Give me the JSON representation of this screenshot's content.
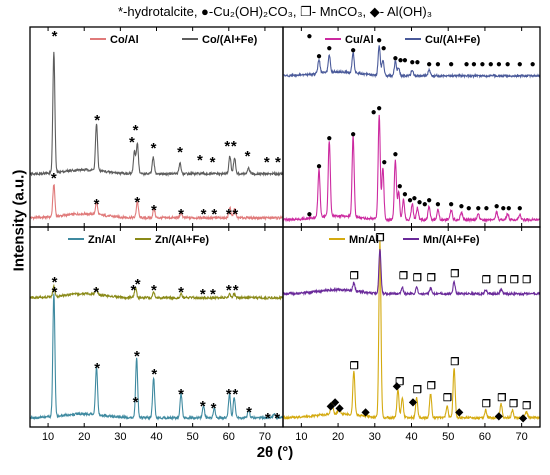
{
  "figure": {
    "top_legend": "*-hydrotalcite, ●-Cu₂(OH)₂CO₃, ❐- MnCO₃, ◆- Al(OH)₃",
    "ylabel": "Intensity (a.u.)",
    "xlabel": "2θ (°)"
  },
  "chart_data": [
    {
      "type": "line",
      "panel": "top-left",
      "xlim": [
        5,
        75
      ],
      "xticks": [],
      "series": [
        {
          "name": "Co/Al",
          "color": "#e07a7a",
          "offset": 0.04,
          "scale": 0.9,
          "peaks": [
            [
              11.6,
              0.18
            ],
            [
              23.4,
              0.07
            ],
            [
              34.7,
              0.09
            ],
            [
              39.3,
              0.05
            ],
            [
              46.8,
              0.03
            ],
            [
              60.3,
              0.06
            ],
            [
              61.6,
              0.05
            ]
          ]
        },
        {
          "name": "Co/(Al+Fe)",
          "color": "#5d5d5d",
          "offset": 0.26,
          "scale": 0.9,
          "peaks": [
            [
              11.6,
              0.67
            ],
            [
              23.4,
              0.26
            ],
            [
              33.9,
              0.12
            ],
            [
              34.7,
              0.17
            ],
            [
              39.1,
              0.09
            ],
            [
              46.5,
              0.06
            ],
            [
              60.3,
              0.1
            ],
            [
              61.6,
              0.09
            ],
            [
              65.5,
              0.03
            ]
          ]
        }
      ],
      "markers": [
        {
          "symbol": "*",
          "x": 11.6,
          "y": 0.26
        },
        {
          "symbol": "*",
          "x": 23.4,
          "y": 0.13
        },
        {
          "symbol": "*",
          "x": 34.7,
          "y": 0.14
        },
        {
          "symbol": "*",
          "x": 39.3,
          "y": 0.1
        },
        {
          "symbol": "*",
          "x": 46.8,
          "y": 0.08
        },
        {
          "symbol": "*",
          "x": 53,
          "y": 0.08
        },
        {
          "symbol": "*",
          "x": 56,
          "y": 0.08
        },
        {
          "symbol": "*",
          "x": 60,
          "y": 0.08
        },
        {
          "symbol": "*",
          "x": 61.8,
          "y": 0.08
        },
        {
          "symbol": "*",
          "x": 11.8,
          "y": 0.97
        },
        {
          "symbol": "*",
          "x": 23.6,
          "y": 0.55
        },
        {
          "symbol": "*",
          "x": 33.2,
          "y": 0.44
        },
        {
          "symbol": "*",
          "x": 34.2,
          "y": 0.5
        },
        {
          "symbol": "*",
          "x": 39.2,
          "y": 0.41
        },
        {
          "symbol": "*",
          "x": 46.5,
          "y": 0.39
        },
        {
          "symbol": "*",
          "x": 52,
          "y": 0.35
        },
        {
          "symbol": "*",
          "x": 55.5,
          "y": 0.34
        },
        {
          "symbol": "*",
          "x": 59.6,
          "y": 0.42
        },
        {
          "symbol": "*",
          "x": 61.4,
          "y": 0.42
        },
        {
          "symbol": "*",
          "x": 65.2,
          "y": 0.37
        },
        {
          "symbol": "*",
          "x": 70.5,
          "y": 0.34
        },
        {
          "symbol": "*",
          "x": 73.6,
          "y": 0.34
        }
      ]
    },
    {
      "type": "line",
      "panel": "top-right",
      "xlim": [
        5,
        75
      ],
      "xticks": [],
      "series": [
        {
          "name": "Cu/Al",
          "color": "#cc2aa0",
          "offset": 0.03,
          "scale": 1.0,
          "peaks": [
            [
              14.8,
              0.24
            ],
            [
              17.6,
              0.38
            ],
            [
              24.1,
              0.4
            ],
            [
              31.2,
              0.52
            ],
            [
              32.2,
              0.26
            ],
            [
              35.6,
              0.3
            ],
            [
              36.5,
              0.14
            ],
            [
              37.8,
              0.1
            ],
            [
              40.2,
              0.08
            ],
            [
              41.6,
              0.06
            ],
            [
              44.8,
              0.07
            ],
            [
              47.2,
              0.05
            ],
            [
              50.8,
              0.05
            ],
            [
              53.6,
              0.04
            ],
            [
              58.2,
              0.03
            ],
            [
              63.2,
              0.04
            ],
            [
              66.2,
              0.03
            ],
            [
              69.5,
              0.03
            ]
          ]
        },
        {
          "name": "Cu/(Al+Fe)",
          "color": "#4a5a9a",
          "offset": 0.75,
          "scale": 1.0,
          "peaks": [
            [
              14.8,
              0.07
            ],
            [
              17.6,
              0.09
            ],
            [
              24.1,
              0.1
            ],
            [
              31.2,
              0.15
            ],
            [
              32.2,
              0.08
            ],
            [
              35.6,
              0.07
            ],
            [
              36.5,
              0.04
            ],
            [
              40.2,
              0.03
            ],
            [
              44.8,
              0.03
            ]
          ]
        }
      ],
      "markers": [
        {
          "symbol": "●",
          "x": 12.2,
          "y": 0.96
        },
        {
          "symbol": "●",
          "x": 14.8,
          "y": 0.86
        },
        {
          "symbol": "●",
          "x": 17.6,
          "y": 0.9
        },
        {
          "symbol": "●",
          "x": 24.1,
          "y": 0.89
        },
        {
          "symbol": "●",
          "x": 31.2,
          "y": 0.94
        },
        {
          "symbol": "●",
          "x": 32.4,
          "y": 0.9
        },
        {
          "symbol": "●",
          "x": 35.6,
          "y": 0.85
        },
        {
          "symbol": "●",
          "x": 37,
          "y": 0.84
        },
        {
          "symbol": "●",
          "x": 38.2,
          "y": 0.84
        },
        {
          "symbol": "●",
          "x": 40.2,
          "y": 0.83
        },
        {
          "symbol": "●",
          "x": 41.6,
          "y": 0.83
        },
        {
          "symbol": "●",
          "x": 44.8,
          "y": 0.82
        },
        {
          "symbol": "●",
          "x": 47.2,
          "y": 0.82
        },
        {
          "symbol": "●",
          "x": 50.8,
          "y": 0.82
        },
        {
          "symbol": "●",
          "x": 55,
          "y": 0.82
        },
        {
          "symbol": "●",
          "x": 57,
          "y": 0.82
        },
        {
          "symbol": "●",
          "x": 59.3,
          "y": 0.82
        },
        {
          "symbol": "●",
          "x": 61.6,
          "y": 0.82
        },
        {
          "symbol": "●",
          "x": 63.8,
          "y": 0.82
        },
        {
          "symbol": "●",
          "x": 66.2,
          "y": 0.82
        },
        {
          "symbol": "●",
          "x": 69.5,
          "y": 0.82
        },
        {
          "symbol": "●",
          "x": 73,
          "y": 0.82
        },
        {
          "symbol": "●",
          "x": 12.2,
          "y": 0.07
        },
        {
          "symbol": "●",
          "x": 14.8,
          "y": 0.31
        },
        {
          "symbol": "●",
          "x": 17.6,
          "y": 0.45
        },
        {
          "symbol": "●",
          "x": 24.1,
          "y": 0.47
        },
        {
          "symbol": "●",
          "x": 29.7,
          "y": 0.58
        },
        {
          "symbol": "●",
          "x": 31.2,
          "y": 0.6
        },
        {
          "symbol": "●",
          "x": 32.6,
          "y": 0.33
        },
        {
          "symbol": "●",
          "x": 35.6,
          "y": 0.37
        },
        {
          "symbol": "●",
          "x": 36.8,
          "y": 0.21
        },
        {
          "symbol": "●",
          "x": 38.2,
          "y": 0.17
        },
        {
          "symbol": "●",
          "x": 39.6,
          "y": 0.14
        },
        {
          "symbol": "●",
          "x": 40.8,
          "y": 0.15
        },
        {
          "symbol": "●",
          "x": 42.2,
          "y": 0.13
        },
        {
          "symbol": "●",
          "x": 43.6,
          "y": 0.12
        },
        {
          "symbol": "●",
          "x": 44.8,
          "y": 0.14
        },
        {
          "symbol": "●",
          "x": 47.2,
          "y": 0.12
        },
        {
          "symbol": "●",
          "x": 50.8,
          "y": 0.12
        },
        {
          "symbol": "●",
          "x": 53.6,
          "y": 0.11
        },
        {
          "symbol": "●",
          "x": 55.6,
          "y": 0.1
        },
        {
          "symbol": "●",
          "x": 58.2,
          "y": 0.1
        },
        {
          "symbol": "●",
          "x": 60.4,
          "y": 0.1
        },
        {
          "symbol": "●",
          "x": 63.2,
          "y": 0.11
        },
        {
          "symbol": "●",
          "x": 65,
          "y": 0.1
        },
        {
          "symbol": "●",
          "x": 66.5,
          "y": 0.1
        },
        {
          "symbol": "●",
          "x": 69.5,
          "y": 0.1
        }
      ]
    },
    {
      "type": "line",
      "panel": "bottom-left",
      "xlim": [
        5,
        75
      ],
      "xticks": [
        10,
        20,
        30,
        40,
        50,
        60,
        70
      ],
      "series": [
        {
          "name": "Zn/Al",
          "color": "#3f8aa0",
          "offset": 0.04,
          "scale": 1.0,
          "peaks": [
            [
              11.6,
              0.62
            ],
            [
              23.4,
              0.24
            ],
            [
              34.5,
              0.3
            ],
            [
              39.2,
              0.2
            ],
            [
              46.8,
              0.12
            ],
            [
              53,
              0.06
            ],
            [
              56,
              0.05
            ],
            [
              60.2,
              0.12
            ],
            [
              61.5,
              0.1
            ],
            [
              65.5,
              0.04
            ],
            [
              72.5,
              0.02
            ]
          ]
        },
        {
          "name": "Zn/(Al+Fe)",
          "color": "#8a8a18",
          "offset": 0.64,
          "scale": 1.0,
          "peaks": [
            [
              11.6,
              0.05
            ],
            [
              23.4,
              0.03
            ],
            [
              34.2,
              0.05
            ],
            [
              39.2,
              0.03
            ],
            [
              46.8,
              0.02
            ],
            [
              60.2,
              0.02
            ],
            [
              61.5,
              0.02
            ]
          ]
        }
      ],
      "markers": [
        {
          "symbol": "*",
          "x": 11.8,
          "y": 0.74
        },
        {
          "symbol": "*",
          "x": 23.3,
          "y": 0.69
        },
        {
          "symbol": "*",
          "x": 33.6,
          "y": 0.7
        },
        {
          "symbol": "*",
          "x": 34.8,
          "y": 0.73
        },
        {
          "symbol": "*",
          "x": 39.3,
          "y": 0.7
        },
        {
          "symbol": "*",
          "x": 46.8,
          "y": 0.69
        },
        {
          "symbol": "*",
          "x": 52.8,
          "y": 0.68
        },
        {
          "symbol": "*",
          "x": 55.6,
          "y": 0.68
        },
        {
          "symbol": "*",
          "x": 60,
          "y": 0.7
        },
        {
          "symbol": "*",
          "x": 61.9,
          "y": 0.7
        },
        {
          "symbol": "*",
          "x": 11.8,
          "y": 0.69
        },
        {
          "symbol": "*",
          "x": 23.6,
          "y": 0.31
        },
        {
          "symbol": "*",
          "x": 34.6,
          "y": 0.37
        },
        {
          "symbol": "*",
          "x": 34.2,
          "y": 0.14
        },
        {
          "symbol": "*",
          "x": 39.4,
          "y": 0.28
        },
        {
          "symbol": "*",
          "x": 46.8,
          "y": 0.18
        },
        {
          "symbol": "*",
          "x": 52.8,
          "y": 0.12
        },
        {
          "symbol": "*",
          "x": 55.8,
          "y": 0.11
        },
        {
          "symbol": "*",
          "x": 60,
          "y": 0.18
        },
        {
          "symbol": "*",
          "x": 61.8,
          "y": 0.18
        },
        {
          "symbol": "*",
          "x": 65.6,
          "y": 0.09
        },
        {
          "symbol": "*",
          "x": 70.8,
          "y": 0.06
        },
        {
          "symbol": "*",
          "x": 73.4,
          "y": 0.06
        }
      ]
    },
    {
      "type": "line",
      "panel": "bottom-right",
      "xlim": [
        5,
        75
      ],
      "xticks": [
        10,
        20,
        30,
        40,
        50,
        60,
        70
      ],
      "series": [
        {
          "name": "Mn/Al",
          "color": "#d4aa10",
          "offset": 0.04,
          "scale": 1.0,
          "peaks": [
            [
              18.3,
              0.06
            ],
            [
              20.3,
              0.04
            ],
            [
              24.3,
              0.22
            ],
            [
              31.4,
              0.88
            ],
            [
              36.3,
              0.14
            ],
            [
              37.5,
              0.1
            ],
            [
              41.4,
              0.1
            ],
            [
              45.2,
              0.12
            ],
            [
              49.7,
              0.06
            ],
            [
              51.6,
              0.25
            ],
            [
              60.2,
              0.04
            ],
            [
              64.4,
              0.07
            ],
            [
              67.5,
              0.04
            ],
            [
              71.3,
              0.03
            ]
          ]
        },
        {
          "name": "Mn/(Al+Fe)",
          "color": "#6a2a9a",
          "offset": 0.66,
          "scale": 1.0,
          "peaks": [
            [
              24.3,
              0.04
            ],
            [
              31.4,
              0.22
            ],
            [
              37.5,
              0.03
            ],
            [
              41.4,
              0.03
            ],
            [
              45.2,
              0.03
            ],
            [
              51.6,
              0.06
            ],
            [
              60.2,
              0.02
            ],
            [
              64.4,
              0.02
            ]
          ]
        }
      ],
      "markers": [
        {
          "symbol": "❐",
          "x": 24.4,
          "y": 0.76
        },
        {
          "symbol": "❐",
          "x": 31.4,
          "y": 0.95
        },
        {
          "symbol": "❐",
          "x": 37.8,
          "y": 0.76
        },
        {
          "symbol": "❐",
          "x": 41.6,
          "y": 0.75
        },
        {
          "symbol": "❐",
          "x": 45.4,
          "y": 0.75
        },
        {
          "symbol": "❐",
          "x": 51.8,
          "y": 0.77
        },
        {
          "symbol": "❐",
          "x": 60.4,
          "y": 0.74
        },
        {
          "symbol": "❐",
          "x": 64.6,
          "y": 0.74
        },
        {
          "symbol": "❐",
          "x": 68,
          "y": 0.74
        },
        {
          "symbol": "❐",
          "x": 71.4,
          "y": 0.74
        },
        {
          "symbol": "❐",
          "x": 24.4,
          "y": 0.31
        },
        {
          "symbol": "❐",
          "x": 36.8,
          "y": 0.23
        },
        {
          "symbol": "❐",
          "x": 41.6,
          "y": 0.19
        },
        {
          "symbol": "❐",
          "x": 45.4,
          "y": 0.21
        },
        {
          "symbol": "❐",
          "x": 49.8,
          "y": 0.15
        },
        {
          "symbol": "❐",
          "x": 51.8,
          "y": 0.33
        },
        {
          "symbol": "❐",
          "x": 60.4,
          "y": 0.12
        },
        {
          "symbol": "❐",
          "x": 64.6,
          "y": 0.15
        },
        {
          "symbol": "❐",
          "x": 67.8,
          "y": 0.12
        },
        {
          "symbol": "❐",
          "x": 71.4,
          "y": 0.11
        },
        {
          "symbol": "◆",
          "x": 18.0,
          "y": 0.11
        },
        {
          "symbol": "◆",
          "x": 19.2,
          "y": 0.13
        },
        {
          "symbol": "◆",
          "x": 20.4,
          "y": 0.1
        },
        {
          "symbol": "◆",
          "x": 27.5,
          "y": 0.08
        },
        {
          "symbol": "◆",
          "x": 36,
          "y": 0.21
        },
        {
          "symbol": "◆",
          "x": 40.4,
          "y": 0.13
        },
        {
          "symbol": "◆",
          "x": 53,
          "y": 0.08
        },
        {
          "symbol": "◆",
          "x": 63.8,
          "y": 0.06
        },
        {
          "symbol": "◆",
          "x": 70.4,
          "y": 0.05
        }
      ]
    }
  ]
}
